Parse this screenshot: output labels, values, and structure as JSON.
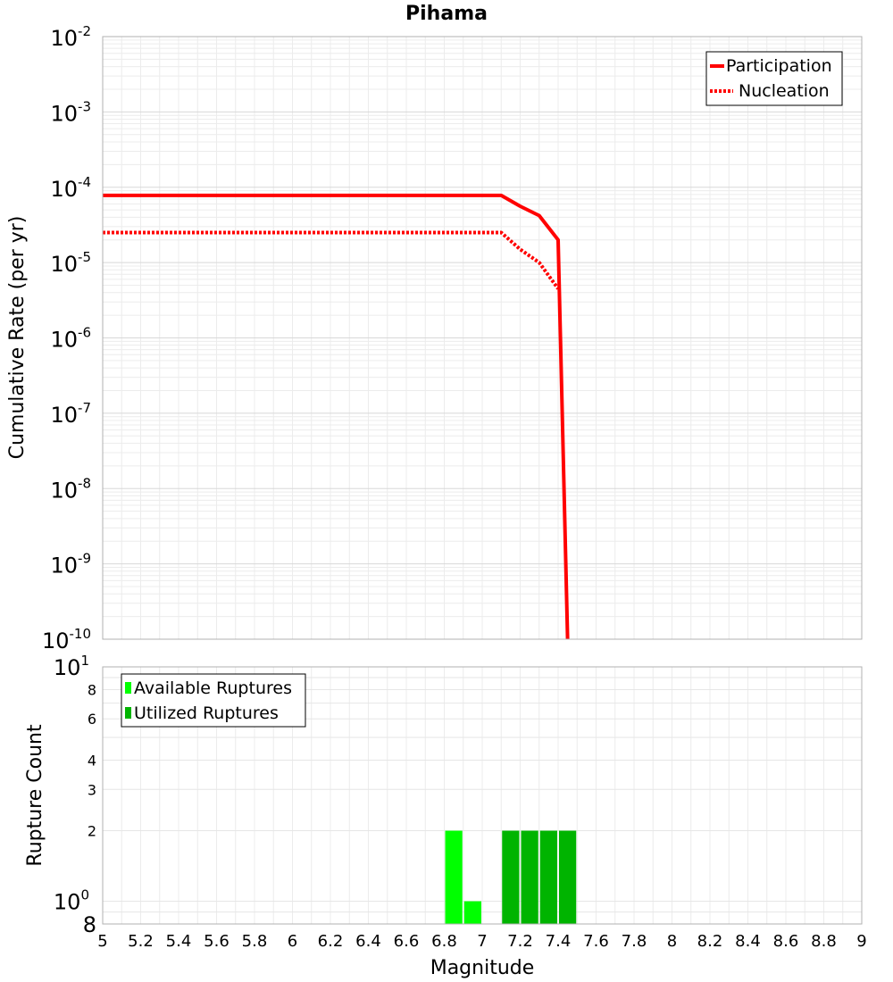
{
  "chart_data": [
    {
      "type": "line",
      "title": "Pihama",
      "ylabel": "Cumulative Rate (per yr)",
      "xlabel": "",
      "xlim": [
        5,
        9
      ],
      "ylim": [
        1e-10,
        0.01
      ],
      "yscale": "log",
      "ytick_labels": [
        {
          "base": "10",
          "exp": "-2",
          "value": 0.01
        },
        {
          "base": "10",
          "exp": "-3",
          "value": 0.001
        },
        {
          "base": "10",
          "exp": "-4",
          "value": 0.0001
        },
        {
          "base": "10",
          "exp": "-5",
          "value": 1e-05
        },
        {
          "base": "10",
          "exp": "-6",
          "value": 1e-06
        },
        {
          "base": "10",
          "exp": "-7",
          "value": 1e-07
        },
        {
          "base": "10",
          "exp": "-8",
          "value": 1e-08
        },
        {
          "base": "10",
          "exp": "-9",
          "value": 1e-09
        },
        {
          "base": "10",
          "exp": "-10",
          "value": 1e-10
        }
      ],
      "series": [
        {
          "name": "Participation",
          "style": "solid",
          "color": "#ff0000",
          "x": [
            5.0,
            7.1,
            7.2,
            7.3,
            7.4,
            7.45
          ],
          "y": [
            7.8e-05,
            7.8e-05,
            5.6e-05,
            4.2e-05,
            2e-05,
            1e-10
          ]
        },
        {
          "name": "Nucleation",
          "style": "dotted",
          "color": "#ff0000",
          "x": [
            5.0,
            7.1,
            7.2,
            7.3,
            7.4
          ],
          "y": [
            2.5e-05,
            2.5e-05,
            1.5e-05,
            1e-05,
            4.5e-06
          ]
        }
      ],
      "legend": {
        "position": "top-right",
        "entries": [
          "Participation",
          "Nucleation"
        ]
      }
    },
    {
      "type": "bar",
      "title": "",
      "ylabel": "Rupture Count",
      "xlabel": "Magnitude",
      "xlim": [
        5,
        9
      ],
      "ylim": [
        0.8,
        10
      ],
      "yscale": "log",
      "x_ticks": [
        "5",
        "5.2",
        "5.4",
        "5.6",
        "5.8",
        "6",
        "6.2",
        "6.4",
        "6.6",
        "6.8",
        "7",
        "7.2",
        "7.4",
        "7.6",
        "7.8",
        "8",
        "8.2",
        "8.4",
        "8.6",
        "8.8",
        "9"
      ],
      "ytick_labels": [
        {
          "label": "10",
          "exp": "1",
          "value": 10,
          "major": true
        },
        {
          "label": "8",
          "exp": "",
          "value": 8,
          "major": false
        },
        {
          "label": "6",
          "exp": "",
          "value": 6,
          "major": false
        },
        {
          "label": "4",
          "exp": "",
          "value": 4,
          "major": false
        },
        {
          "label": "3",
          "exp": "",
          "value": 3,
          "major": false
        },
        {
          "label": "2",
          "exp": "",
          "value": 2,
          "major": false
        },
        {
          "label": "10",
          "exp": "0",
          "value": 1,
          "major": true
        },
        {
          "label": "8",
          "exp": "",
          "value": 0.8,
          "major": true
        }
      ],
      "series": [
        {
          "name": "Available Ruptures",
          "color": "#00ff00",
          "x": [
            6.85,
            6.95
          ],
          "values": [
            2,
            1
          ]
        },
        {
          "name": "Utilized Ruptures",
          "color": "#00b400",
          "x": [
            7.15,
            7.25,
            7.35,
            7.45
          ],
          "values": [
            2,
            2,
            2,
            2
          ]
        }
      ],
      "bar_width": 0.1,
      "legend": {
        "position": "top-left",
        "entries": [
          "Available Ruptures",
          "Utilized Ruptures"
        ]
      }
    }
  ]
}
